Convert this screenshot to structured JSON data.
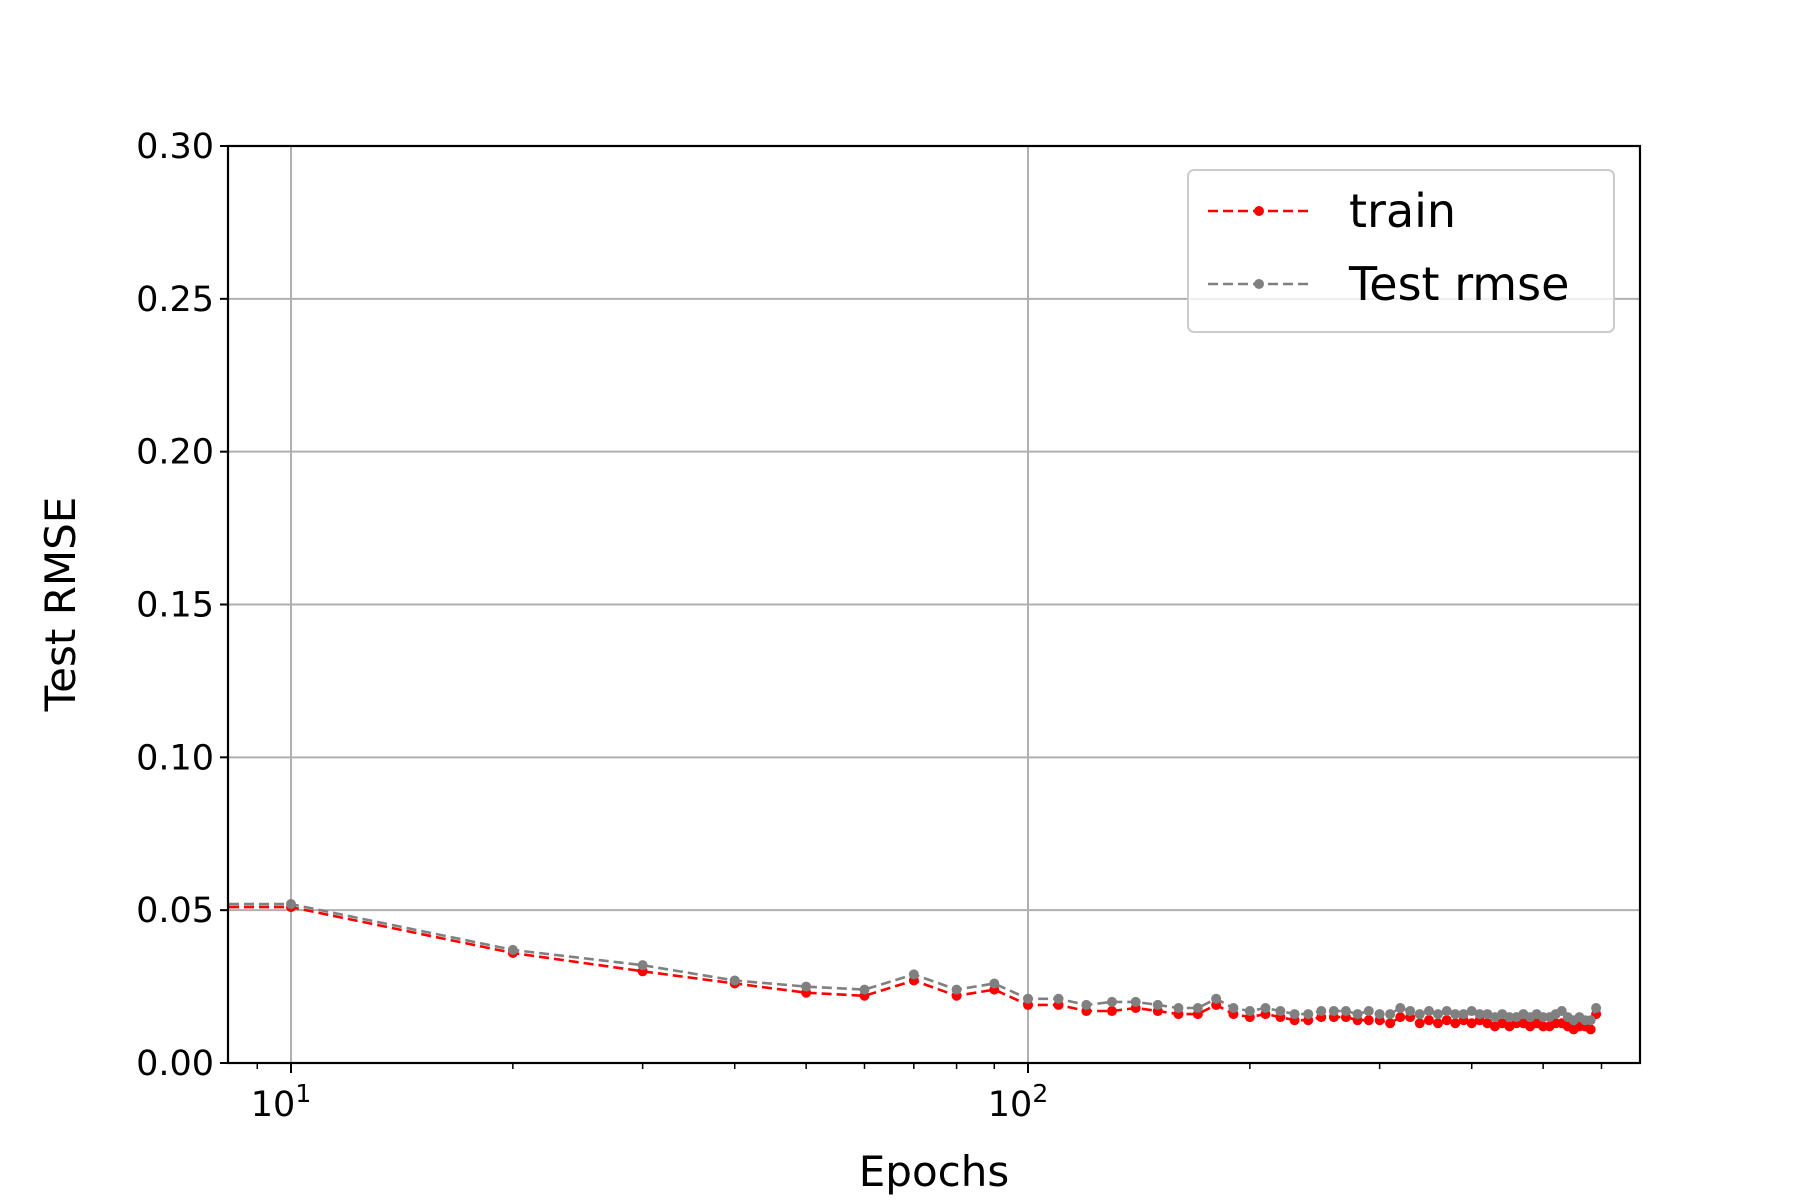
{
  "chart_data": {
    "type": "line",
    "title": "",
    "xlabel": "Epochs",
    "ylabel": "Test RMSE",
    "x_scale": "log",
    "xlim": [
      8.5,
      720
    ],
    "ylim": [
      0,
      0.3
    ],
    "grid": true,
    "legend": {
      "placement": "top-right"
    },
    "y_ticks": [
      "0.00",
      "0.05",
      "0.10",
      "0.15",
      "0.20",
      "0.25",
      "0.30"
    ],
    "x_ticks": [
      {
        "base": "10",
        "exp": "1"
      },
      {
        "base": "10",
        "exp": "2"
      }
    ],
    "x": [
      1,
      10,
      20,
      30,
      40,
      50,
      60,
      70,
      80,
      90,
      100,
      110,
      120,
      130,
      140,
      150,
      160,
      170,
      180,
      190,
      200,
      210,
      220,
      230,
      240,
      250,
      260,
      270,
      280,
      290,
      300,
      310,
      320,
      330,
      340,
      350,
      360,
      370,
      380,
      390,
      400,
      410,
      420,
      430,
      440,
      450,
      460,
      470,
      480,
      490,
      500,
      510,
      520,
      530,
      540,
      550,
      560,
      570,
      580,
      590
    ],
    "series": [
      {
        "name": "train",
        "color": "#ff0000",
        "values": [
          0.051,
          0.051,
          0.036,
          0.03,
          0.026,
          0.023,
          0.022,
          0.027,
          0.022,
          0.024,
          0.019,
          0.019,
          0.017,
          0.017,
          0.018,
          0.017,
          0.016,
          0.016,
          0.019,
          0.016,
          0.015,
          0.016,
          0.015,
          0.014,
          0.014,
          0.015,
          0.015,
          0.015,
          0.014,
          0.014,
          0.014,
          0.013,
          0.015,
          0.015,
          0.013,
          0.014,
          0.013,
          0.014,
          0.013,
          0.014,
          0.013,
          0.014,
          0.013,
          0.012,
          0.013,
          0.012,
          0.013,
          0.013,
          0.012,
          0.013,
          0.012,
          0.012,
          0.013,
          0.013,
          0.012,
          0.011,
          0.012,
          0.012,
          0.011,
          0.016
        ]
      },
      {
        "name": "Test rmse",
        "color": "#808080",
        "values": [
          0.052,
          0.052,
          0.037,
          0.032,
          0.027,
          0.025,
          0.024,
          0.029,
          0.024,
          0.026,
          0.021,
          0.021,
          0.019,
          0.02,
          0.02,
          0.019,
          0.018,
          0.018,
          0.021,
          0.018,
          0.017,
          0.018,
          0.017,
          0.016,
          0.016,
          0.017,
          0.017,
          0.017,
          0.016,
          0.017,
          0.016,
          0.016,
          0.018,
          0.017,
          0.016,
          0.017,
          0.016,
          0.017,
          0.016,
          0.016,
          0.017,
          0.016,
          0.016,
          0.015,
          0.016,
          0.015,
          0.015,
          0.016,
          0.015,
          0.016,
          0.015,
          0.015,
          0.016,
          0.017,
          0.015,
          0.014,
          0.015,
          0.014,
          0.014,
          0.018
        ]
      }
    ]
  }
}
